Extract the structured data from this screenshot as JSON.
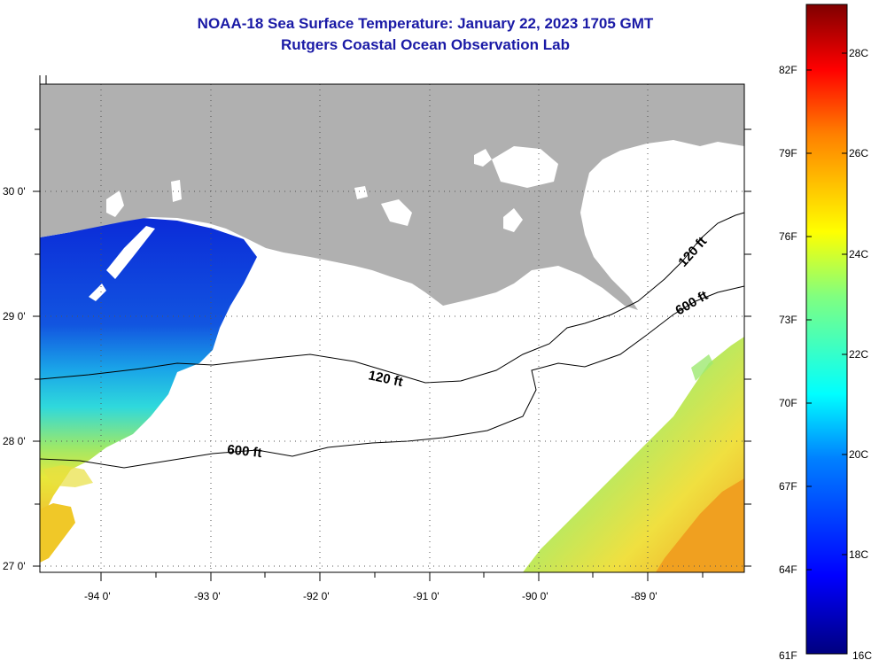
{
  "header": {
    "title": "NOAA-18 Sea Surface Temperature:  January 22, 2023 1705 GMT",
    "subtitle": "Rutgers Coastal Ocean Observation Lab"
  },
  "map": {
    "lat_labels": [
      {
        "text": "30 0'",
        "value": 30
      },
      {
        "text": "29 0'",
        "value": 29
      },
      {
        "text": "28 0'",
        "value": 28
      },
      {
        "text": "27 0'",
        "value": 27
      }
    ],
    "lon_labels": [
      {
        "text": "-94 0'",
        "value": -94
      },
      {
        "text": "-93 0'",
        "value": -93
      },
      {
        "text": "-92 0'",
        "value": -92
      },
      {
        "text": "-91 0'",
        "value": -91
      },
      {
        "text": "-90 0'",
        "value": -90
      },
      {
        "text": "-89 0'",
        "value": -89
      }
    ],
    "contour_labels": [
      "120 ft",
      "600 ft",
      "120 ft",
      "600 ft"
    ],
    "colors": {
      "land": "#b0b0b0",
      "no_data": "#ffffff",
      "contour": "#000000"
    }
  },
  "colorbar": {
    "fahrenheit": [
      "82F",
      "79F",
      "76F",
      "73F",
      "70F",
      "67F",
      "64F",
      "61F"
    ],
    "celsius": [
      "28C",
      "26C",
      "24C",
      "22C",
      "20C",
      "18C",
      "16C"
    ],
    "range_c": [
      16,
      29
    ],
    "scale": "jet"
  }
}
